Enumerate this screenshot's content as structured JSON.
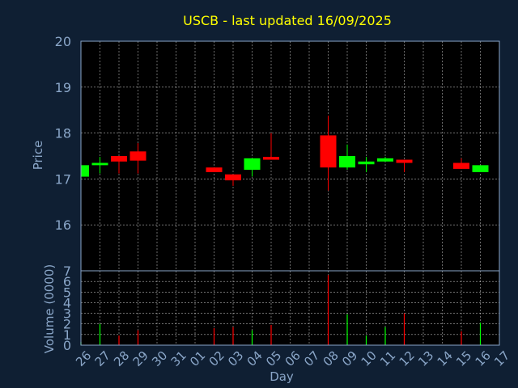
{
  "theme": {
    "background": "#0f1f33",
    "plot_background": "#000000",
    "title_color": "#ffff00",
    "axis_text_color": "#8aa6c8",
    "grid_color": "#ffffff",
    "up_color": "#00ff00",
    "down_color": "#ff0000"
  },
  "chart_data": [
    {
      "type": "candlestick",
      "title": "USCB - last updated 16/09/2025",
      "ylabel": "Price",
      "ylim": [
        15.0,
        20.0
      ],
      "yticks": [
        16,
        17,
        18,
        19,
        20
      ],
      "grid": true,
      "x_range": [
        0,
        22
      ],
      "candles": [
        {
          "x": 0,
          "open": 17.05,
          "close": 17.3,
          "high": 17.3,
          "low": 17.05
        },
        {
          "x": 1,
          "open": 17.3,
          "close": 17.35,
          "high": 17.48,
          "low": 17.12
        },
        {
          "x": 2,
          "open": 17.5,
          "close": 17.38,
          "high": 17.5,
          "low": 17.12
        },
        {
          "x": 3,
          "open": 17.6,
          "close": 17.4,
          "high": 17.78,
          "low": 17.12
        },
        {
          "x": 7,
          "open": 17.25,
          "close": 17.15,
          "high": 17.25,
          "low": 17.15
        },
        {
          "x": 8,
          "open": 17.1,
          "close": 16.97,
          "high": 17.1,
          "low": 16.85
        },
        {
          "x": 9,
          "open": 17.2,
          "close": 17.45,
          "high": 17.45,
          "low": 17.05
        },
        {
          "x": 10,
          "open": 17.48,
          "close": 17.42,
          "high": 18.0,
          "low": 17.42
        },
        {
          "x": 13,
          "open": 17.95,
          "close": 17.25,
          "high": 18.38,
          "low": 16.75
        },
        {
          "x": 14,
          "open": 17.25,
          "close": 17.5,
          "high": 17.75,
          "low": 17.2
        },
        {
          "x": 15,
          "open": 17.32,
          "close": 17.38,
          "high": 17.48,
          "low": 17.15
        },
        {
          "x": 16,
          "open": 17.38,
          "close": 17.45,
          "high": 17.48,
          "low": 17.38
        },
        {
          "x": 17,
          "open": 17.42,
          "close": 17.35,
          "high": 17.42,
          "low": 17.15
        },
        {
          "x": 20,
          "open": 17.35,
          "close": 17.22,
          "high": 17.45,
          "low": 17.22
        },
        {
          "x": 21,
          "open": 17.15,
          "close": 17.3,
          "high": 17.3,
          "low": 17.15
        }
      ]
    },
    {
      "type": "bar",
      "xlabel": "Day",
      "ylabel": "Volume (0000)",
      "ylim": [
        0,
        7
      ],
      "yticks": [
        0,
        1,
        2,
        3,
        4,
        5,
        6,
        7
      ],
      "grid": true,
      "categories": [
        "26",
        "27",
        "28",
        "29",
        "30",
        "31",
        "01",
        "02",
        "03",
        "04",
        "05",
        "06",
        "07",
        "08",
        "09",
        "10",
        "11",
        "12",
        "13",
        "14",
        "15",
        "16",
        "17"
      ],
      "bars": [
        {
          "x": 0,
          "value": 0.3,
          "direction": "up"
        },
        {
          "x": 1,
          "value": 2.0,
          "direction": "up"
        },
        {
          "x": 2,
          "value": 0.9,
          "direction": "down"
        },
        {
          "x": 3,
          "value": 1.4,
          "direction": "down"
        },
        {
          "x": 7,
          "value": 1.6,
          "direction": "down"
        },
        {
          "x": 8,
          "value": 1.7,
          "direction": "down"
        },
        {
          "x": 9,
          "value": 1.4,
          "direction": "up"
        },
        {
          "x": 10,
          "value": 1.9,
          "direction": "down"
        },
        {
          "x": 13,
          "value": 6.6,
          "direction": "down"
        },
        {
          "x": 14,
          "value": 2.9,
          "direction": "up"
        },
        {
          "x": 15,
          "value": 0.9,
          "direction": "up"
        },
        {
          "x": 16,
          "value": 1.7,
          "direction": "up"
        },
        {
          "x": 17,
          "value": 3.0,
          "direction": "down"
        },
        {
          "x": 20,
          "value": 1.3,
          "direction": "down"
        },
        {
          "x": 21,
          "value": 2.1,
          "direction": "up"
        }
      ]
    }
  ]
}
